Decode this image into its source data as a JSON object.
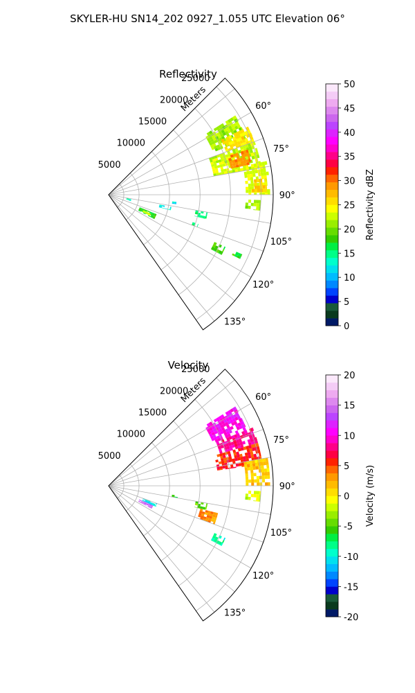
{
  "suptitle": "SKYLER-HU  SN14_202  0927_1.055 UTC Elevation 06°",
  "chart_data": [
    {
      "type": "heatmap",
      "title": "Reflectivity",
      "radial_label": "Meters",
      "range_max_m": 27000,
      "azimuth_min_deg": 45,
      "azimuth_max_deg": 145,
      "range_rings_m": [
        2500,
        5000,
        10000,
        15000,
        20000,
        25000
      ],
      "range_tick_labels": [
        "5000",
        "10000",
        "15000",
        "20000",
        "25000"
      ],
      "azimuth_ticks_deg": [
        60,
        75,
        90,
        105,
        120,
        135
      ],
      "azimuth_tick_labels": [
        "60°",
        "75°",
        "90°",
        "105°",
        "120°",
        "135°"
      ],
      "grid": true,
      "colorbar": {
        "label": "Reflectivity dBZ",
        "vmin": 0,
        "vmax": 50,
        "ticks": [
          0,
          5,
          10,
          15,
          20,
          25,
          30,
          35,
          40,
          45,
          50
        ],
        "colors": [
          "#001a66",
          "#0a3a1e",
          "#1a5a3a",
          "#0000cc",
          "#0044ff",
          "#0088ff",
          "#00bbff",
          "#00e0ee",
          "#00ffcc",
          "#00ff88",
          "#00ee44",
          "#33cc00",
          "#66dd00",
          "#99ee00",
          "#ccff00",
          "#ffff00",
          "#ffdd00",
          "#ffbb00",
          "#ff9900",
          "#ff6600",
          "#ff2200",
          "#ff0044",
          "#ff0088",
          "#ff00cc",
          "#ff00ff",
          "#dd22ff",
          "#bb44ff",
          "#cc66ee",
          "#dd88ee",
          "#eeaaf0",
          "#f4ccf6",
          "#fbe8fb"
        ]
      },
      "echoes": [
        {
          "az": [
            58,
            68
          ],
          "r": [
            18500,
            24500
          ],
          "value": 21
        },
        {
          "az": [
            64,
            70
          ],
          "r": [
            20500,
            25500
          ],
          "value": 25
        },
        {
          "az": [
            70,
            80
          ],
          "r": [
            17500,
            25500
          ],
          "value": 22
        },
        {
          "az": [
            72,
            78
          ],
          "r": [
            20500,
            24000
          ],
          "value": 29
        },
        {
          "az": [
            78,
            90
          ],
          "r": [
            22500,
            26500
          ],
          "value": 23
        },
        {
          "az": [
            84,
            89
          ],
          "r": [
            23500,
            26000
          ],
          "value": 26
        },
        {
          "az": [
            92,
            96
          ],
          "r": [
            22500,
            25000
          ],
          "value": 21
        },
        {
          "az": [
            112,
            118
          ],
          "r": [
            5500,
            8500
          ],
          "value": 17
        },
        {
          "az": [
            114,
            117
          ],
          "r": [
            6200,
            7600
          ],
          "value": 22
        },
        {
          "az": [
            100,
            104
          ],
          "r": [
            14500,
            16500
          ],
          "value": 15
        },
        {
          "az": [
            101,
            104
          ],
          "r": [
            8500,
            10500
          ],
          "value": 12
        },
        {
          "az": [
            108,
            110
          ],
          "r": [
            14500,
            15500
          ],
          "value": 15
        },
        {
          "az": [
            114,
            118
          ],
          "r": [
            19000,
            21000
          ],
          "value": 18
        },
        {
          "az": [
            114,
            116
          ],
          "r": [
            22500,
            24000
          ],
          "value": 17
        },
        {
          "az": [
            100,
            106
          ],
          "r": [
            3000,
            3800
          ],
          "value": 13
        },
        {
          "az": [
            96,
            98
          ],
          "r": [
            10500,
            11200
          ],
          "value": 11
        }
      ]
    },
    {
      "type": "heatmap",
      "title": "Velocity",
      "radial_label": "Meters",
      "range_max_m": 27000,
      "azimuth_min_deg": 45,
      "azimuth_max_deg": 145,
      "range_rings_m": [
        2500,
        5000,
        10000,
        15000,
        20000,
        25000
      ],
      "range_tick_labels": [
        "5000",
        "10000",
        "15000",
        "20000",
        "25000"
      ],
      "azimuth_ticks_deg": [
        60,
        75,
        90,
        105,
        120,
        135
      ],
      "azimuth_tick_labels": [
        "60°",
        "75°",
        "90°",
        "105°",
        "120°",
        "135°"
      ],
      "grid": true,
      "colorbar": {
        "label": "Velocity (m/s)",
        "vmin": -20,
        "vmax": 20,
        "ticks": [
          -20,
          -15,
          -10,
          -5,
          0,
          5,
          10,
          15,
          20
        ],
        "colors": [
          "#001a66",
          "#0a3a1e",
          "#1a5a3a",
          "#0000cc",
          "#0044ff",
          "#0088ff",
          "#00bbff",
          "#00e0ee",
          "#00ffcc",
          "#00ff88",
          "#00ee44",
          "#33cc00",
          "#66dd00",
          "#99ee00",
          "#ccff00",
          "#ffff00",
          "#ffdd00",
          "#ffbb00",
          "#ff9900",
          "#ff6600",
          "#ff2200",
          "#ff0044",
          "#ff0088",
          "#ff00cc",
          "#ff00ff",
          "#dd22ff",
          "#bb44ff",
          "#cc66ee",
          "#dd88ee",
          "#eeaaf0",
          "#f4ccf6",
          "#fbe8fb"
        ]
      },
      "echoes": [
        {
          "az": [
            58,
            68
          ],
          "r": [
            18500,
            24500
          ],
          "value": 10
        },
        {
          "az": [
            68,
            74
          ],
          "r": [
            19000,
            25500
          ],
          "value": 8
        },
        {
          "az": [
            74,
            82
          ],
          "r": [
            18000,
            25500
          ],
          "value": 5
        },
        {
          "az": [
            80,
            90
          ],
          "r": [
            22500,
            26500
          ],
          "value": 1
        },
        {
          "az": [
            92,
            96
          ],
          "r": [
            22500,
            25000
          ],
          "value": -2
        },
        {
          "az": [
            110,
            114
          ],
          "r": [
            6000,
            8500
          ],
          "value": -11
        },
        {
          "az": [
            114,
            118
          ],
          "r": [
            5500,
            8000
          ],
          "value": 14
        },
        {
          "az": [
            100,
            104
          ],
          "r": [
            14500,
            16500
          ],
          "value": -5
        },
        {
          "az": [
            104,
            110
          ],
          "r": [
            15500,
            18500
          ],
          "value": 3
        },
        {
          "az": [
            114,
            118
          ],
          "r": [
            19000,
            21000
          ],
          "value": -9
        },
        {
          "az": [
            98,
            100
          ],
          "r": [
            10500,
            11500
          ],
          "value": -6
        }
      ]
    }
  ]
}
